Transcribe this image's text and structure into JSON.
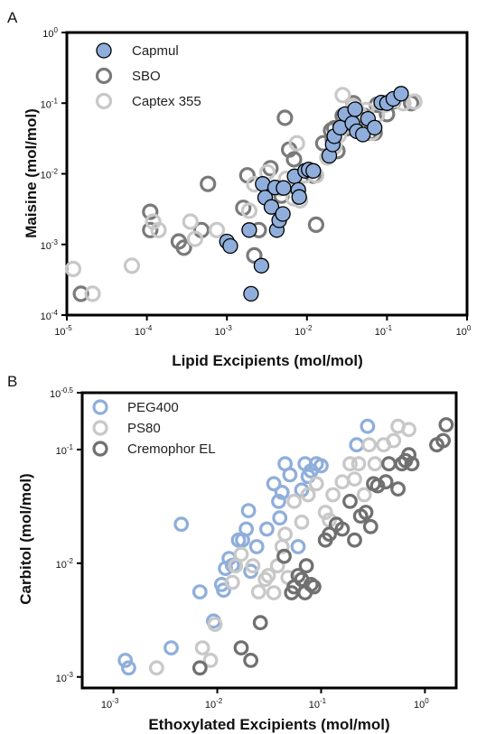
{
  "chart_data": [
    {
      "panel_label": "A",
      "type": "scatter",
      "xlabel": "Lipid Excipients (mol/mol)",
      "ylabel": "Maisine (mol/mol)",
      "x_scale": "log",
      "y_scale": "log",
      "xlim": [
        1e-05,
        1
      ],
      "ylim": [
        0.0001,
        1
      ],
      "x_ticks": [
        {
          "base": "10",
          "exp": "-5"
        },
        {
          "base": "10",
          "exp": "-4"
        },
        {
          "base": "10",
          "exp": "-3"
        },
        {
          "base": "10",
          "exp": "-2"
        },
        {
          "base": "10",
          "exp": "-1"
        },
        {
          "base": "10",
          "exp": "0"
        }
      ],
      "y_ticks": [
        {
          "base": "10",
          "exp": "-4"
        },
        {
          "base": "10",
          "exp": "-3"
        },
        {
          "base": "10",
          "exp": "-2"
        },
        {
          "base": "10",
          "exp": "-1"
        },
        {
          "base": "10",
          "exp": "0"
        }
      ],
      "legend_position": "top-left",
      "series": [
        {
          "name": "SBO",
          "style": "open",
          "color": "#7a7a7a",
          "x": [
            1.5e-05,
            0.00011,
            0.00011,
            0.00025,
            0.00029,
            0.00048,
            0.00058,
            0.0016,
            0.0018,
            0.0022,
            0.0025,
            0.0035,
            0.0048,
            0.0053,
            0.006,
            0.0069,
            0.0092,
            0.012,
            0.013,
            0.016,
            0.02,
            0.021,
            0.022,
            0.024,
            0.028,
            0.03,
            0.032,
            0.035,
            0.038,
            0.045,
            0.052,
            0.06,
            0.07,
            0.075,
            0.085,
            0.092,
            0.1,
            0.11,
            0.12,
            0.2
          ],
          "y": [
            0.0002,
            0.0016,
            0.0029,
            0.0011,
            0.0009,
            0.0016,
            0.0072,
            0.0033,
            0.0095,
            0.0007,
            0.0016,
            0.012,
            0.0049,
            0.062,
            0.022,
            0.016,
            0.0095,
            0.0094,
            0.0019,
            0.027,
            0.041,
            0.031,
            0.044,
            0.021,
            0.066,
            0.049,
            0.044,
            0.048,
            0.1,
            0.06,
            0.066,
            0.038,
            0.038,
            0.095,
            0.1,
            0.098,
            0.07,
            0.105,
            0.106,
            0.1
          ]
        },
        {
          "name": "Captex 355",
          "style": "open",
          "color": "#c8c8c8",
          "x": [
            1.2e-05,
            2.1e-05,
            6.5e-05,
            0.00012,
            0.00014,
            0.00035,
            0.0004,
            0.00075,
            0.0019,
            0.0022,
            0.0032,
            0.0045,
            0.0055,
            0.0068,
            0.0075,
            0.0082,
            0.0095,
            0.013,
            0.018,
            0.022,
            0.025,
            0.028,
            0.032,
            0.038,
            0.045,
            0.05,
            0.055,
            0.065,
            0.075,
            0.085,
            0.095,
            0.12,
            0.16,
            0.22
          ],
          "y": [
            0.00045,
            0.0002,
            0.0005,
            0.0021,
            0.0016,
            0.0021,
            0.0012,
            0.0016,
            0.003,
            0.0071,
            0.0105,
            0.0062,
            0.0085,
            0.0045,
            0.027,
            0.0042,
            0.0095,
            0.0095,
            0.017,
            0.024,
            0.035,
            0.13,
            0.048,
            0.09,
            0.072,
            0.052,
            0.08,
            0.038,
            0.068,
            0.1,
            0.095,
            0.11,
            0.1,
            0.105
          ]
        },
        {
          "name": "Capmul",
          "style": "filled",
          "color": "#8faedb",
          "x": [
            0.001,
            0.0011,
            0.0019,
            0.002,
            0.0027,
            0.0028,
            0.003,
            0.0036,
            0.004,
            0.0042,
            0.0045,
            0.005,
            0.0051,
            0.007,
            0.0078,
            0.008,
            0.0095,
            0.0105,
            0.012,
            0.019,
            0.021,
            0.022,
            0.026,
            0.03,
            0.037,
            0.04,
            0.042,
            0.05,
            0.058,
            0.07,
            0.085,
            0.1,
            0.12,
            0.15
          ],
          "y": [
            0.0011,
            0.00095,
            0.0016,
            0.0002,
            0.0005,
            0.0072,
            0.0046,
            0.0034,
            0.0064,
            0.0016,
            0.0022,
            0.0027,
            0.0063,
            0.0092,
            0.0059,
            0.0047,
            0.011,
            0.0115,
            0.011,
            0.018,
            0.026,
            0.034,
            0.045,
            0.07,
            0.052,
            0.082,
            0.04,
            0.036,
            0.06,
            0.045,
            0.102,
            0.1,
            0.115,
            0.136
          ]
        }
      ]
    },
    {
      "panel_label": "B",
      "type": "scatter",
      "xlabel": "Ethoxylated Excipients (mol/mol)",
      "ylabel": "Carbitol (mol/mol)",
      "x_scale": "log",
      "y_scale": "log",
      "xlim": [
        0.0005,
        2
      ],
      "ylim": [
        0.0008,
        0.316
      ],
      "x_ticks": [
        {
          "base": "10",
          "exp": "-3"
        },
        {
          "base": "10",
          "exp": "-2"
        },
        {
          "base": "10",
          "exp": "-1"
        },
        {
          "base": "10",
          "exp": "0"
        }
      ],
      "y_ticks": [
        {
          "base": "10",
          "exp": "-3"
        },
        {
          "base": "10",
          "exp": "-2"
        },
        {
          "base": "10",
          "exp": "-1"
        },
        {
          "base": "10",
          "exp": "-0.5"
        }
      ],
      "legend_position": "top-left",
      "series": [
        {
          "name": "PEG400",
          "style": "open",
          "color": "#8faedb",
          "x": [
            0.0013,
            0.0014,
            0.0036,
            0.0045,
            0.0068,
            0.0092,
            0.011,
            0.0115,
            0.012,
            0.013,
            0.014,
            0.016,
            0.0175,
            0.019,
            0.02,
            0.021,
            0.024,
            0.03,
            0.035,
            0.039,
            0.04,
            0.042,
            0.045,
            0.05,
            0.06,
            0.065,
            0.07,
            0.075,
            0.08,
            0.09,
            0.1,
            0.22,
            0.28
          ],
          "y": [
            0.0014,
            0.0012,
            0.0018,
            0.022,
            0.0056,
            0.0031,
            0.0065,
            0.0058,
            0.009,
            0.011,
            0.0096,
            0.016,
            0.016,
            0.02,
            0.029,
            0.0085,
            0.014,
            0.02,
            0.05,
            0.035,
            0.025,
            0.042,
            0.075,
            0.06,
            0.014,
            0.044,
            0.075,
            0.058,
            0.065,
            0.075,
            0.072,
            0.11,
            0.16
          ]
        },
        {
          "name": "PS80",
          "style": "open",
          "color": "#c8c8c8",
          "x": [
            0.0026,
            0.0072,
            0.0086,
            0.0095,
            0.014,
            0.015,
            0.017,
            0.022,
            0.025,
            0.029,
            0.031,
            0.035,
            0.038,
            0.042,
            0.045,
            0.048,
            0.055,
            0.065,
            0.075,
            0.09,
            0.11,
            0.12,
            0.13,
            0.16,
            0.19,
            0.21,
            0.23,
            0.26,
            0.29,
            0.33,
            0.4,
            0.5,
            0.55,
            0.7
          ],
          "y": [
            0.0012,
            0.0018,
            0.0014,
            0.0029,
            0.0068,
            0.0095,
            0.012,
            0.0095,
            0.0056,
            0.0072,
            0.0078,
            0.0055,
            0.0095,
            0.014,
            0.018,
            0.0075,
            0.035,
            0.023,
            0.04,
            0.05,
            0.028,
            0.024,
            0.04,
            0.052,
            0.075,
            0.055,
            0.075,
            0.04,
            0.11,
            0.075,
            0.11,
            0.12,
            0.16,
            0.15
          ]
        },
        {
          "name": "Cremophor EL",
          "style": "open",
          "color": "#707070",
          "x": [
            0.0068,
            0.017,
            0.021,
            0.026,
            0.044,
            0.052,
            0.055,
            0.06,
            0.065,
            0.07,
            0.072,
            0.08,
            0.085,
            0.11,
            0.12,
            0.14,
            0.16,
            0.19,
            0.21,
            0.24,
            0.27,
            0.3,
            0.32,
            0.35,
            0.42,
            0.45,
            0.55,
            0.6,
            0.65,
            0.7,
            0.75,
            1.3,
            1.5,
            1.6
          ],
          "y": [
            0.0012,
            0.0018,
            0.0014,
            0.003,
            0.0115,
            0.0055,
            0.0062,
            0.0078,
            0.0072,
            0.0055,
            0.0095,
            0.0065,
            0.0062,
            0.016,
            0.018,
            0.022,
            0.02,
            0.035,
            0.016,
            0.026,
            0.028,
            0.021,
            0.05,
            0.048,
            0.052,
            0.075,
            0.045,
            0.075,
            0.08,
            0.09,
            0.075,
            0.11,
            0.12,
            0.165
          ]
        }
      ]
    }
  ]
}
